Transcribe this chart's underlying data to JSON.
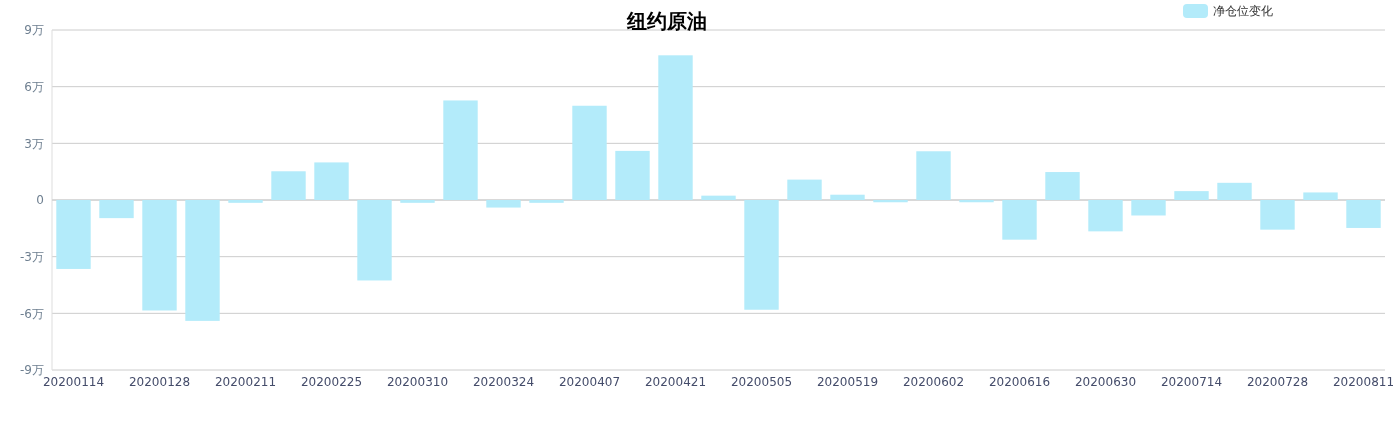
{
  "chart_data": {
    "type": "bar",
    "title": "纽约原油",
    "categories": [
      "20200114",
      null,
      "20200128",
      null,
      "20200211",
      null,
      "20200225",
      null,
      "20200310",
      null,
      "20200324",
      null,
      "20200407",
      null,
      "20200421",
      null,
      "20200505",
      null,
      "20200519",
      null,
      "20200602",
      null,
      "20200616",
      null,
      "20200630",
      null,
      "20200714",
      null,
      "20200728",
      null,
      "20200811"
    ],
    "series": [
      {
        "name": "净仓位变化",
        "color": "#b3ebfa",
        "values": [
          -3.65,
          -0.96,
          -5.85,
          -6.4,
          -0.15,
          1.52,
          1.99,
          -4.26,
          -0.15,
          5.27,
          -0.4,
          -0.15,
          4.99,
          2.6,
          7.66,
          0.23,
          -5.81,
          1.08,
          0.28,
          -0.12,
          2.58,
          -0.12,
          -2.1,
          1.48,
          -1.66,
          -0.82,
          0.47,
          0.91,
          -1.57,
          0.4,
          -1.48
        ]
      }
    ],
    "ylim": [
      -9,
      9
    ],
    "yticks": [
      {
        "value": -9,
        "label": "-9万"
      },
      {
        "value": -6,
        "label": "-6万"
      },
      {
        "value": -3,
        "label": "-3万"
      },
      0,
      {
        "value": 3,
        "label": "3万"
      },
      {
        "value": 6,
        "label": "6万"
      },
      {
        "value": 9,
        "label": "9万"
      }
    ],
    "grid": "y",
    "legend": "top right"
  }
}
